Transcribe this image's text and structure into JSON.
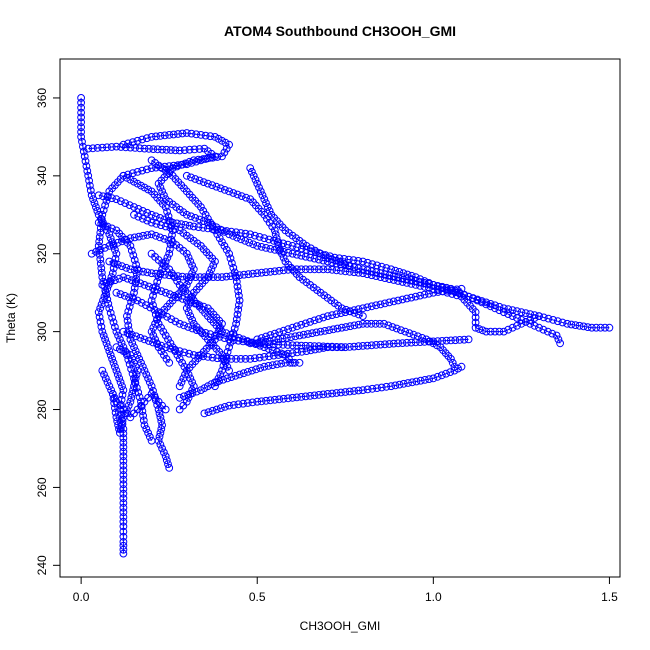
{
  "chart_data": {
    "type": "scatter",
    "title": "ATOM4 Southbound CH3OOH_GMI",
    "xlabel": "CH3OOH_GMI",
    "ylabel": "Theta (K)",
    "xlim": [
      -0.06,
      1.53
    ],
    "ylim": [
      237,
      370
    ],
    "xticks": [
      0.0,
      0.5,
      1.0,
      1.5
    ],
    "xtick_labels": [
      "0.0",
      "0.5",
      "1.0",
      "1.5"
    ],
    "yticks": [
      240,
      260,
      280,
      300,
      320,
      340,
      360
    ],
    "ytick_labels": [
      "240",
      "260",
      "280",
      "300",
      "320",
      "340",
      "360"
    ],
    "grid": false,
    "legend": "none",
    "marker": "open-circle",
    "connect_points": true,
    "series_color": "#0000ff",
    "series": [
      {
        "points": [
          [
            0.0,
            360
          ],
          [
            0.0,
            355
          ],
          [
            0.0,
            350
          ],
          [
            0.01,
            345
          ],
          [
            0.02,
            340
          ],
          [
            0.03,
            335
          ],
          [
            0.05,
            330
          ],
          [
            0.08,
            325
          ],
          [
            0.1,
            320
          ],
          [
            0.09,
            315
          ],
          [
            0.07,
            310
          ],
          [
            0.05,
            305
          ],
          [
            0.06,
            300
          ],
          [
            0.08,
            295
          ],
          [
            0.1,
            290
          ],
          [
            0.12,
            285
          ],
          [
            0.11,
            280
          ],
          [
            0.12,
            275
          ],
          [
            0.12,
            268
          ],
          [
            0.12,
            262
          ],
          [
            0.12,
            256
          ],
          [
            0.12,
            250
          ],
          [
            0.12,
            246
          ],
          [
            0.12,
            243
          ]
        ]
      },
      {
        "points": [
          [
            0.02,
            347
          ],
          [
            0.1,
            347.5
          ],
          [
            0.18,
            347
          ],
          [
            0.28,
            346.5
          ],
          [
            0.35,
            347
          ],
          [
            0.38,
            345
          ],
          [
            0.3,
            343
          ],
          [
            0.2,
            342
          ],
          [
            0.12,
            340
          ],
          [
            0.08,
            336
          ],
          [
            0.06,
            330
          ],
          [
            0.05,
            322
          ],
          [
            0.06,
            314
          ],
          [
            0.08,
            306
          ],
          [
            0.1,
            300
          ],
          [
            0.13,
            294
          ],
          [
            0.15,
            288
          ],
          [
            0.17,
            282
          ],
          [
            0.18,
            276
          ],
          [
            0.2,
            272
          ]
        ]
      },
      {
        "points": [
          [
            0.12,
            348
          ],
          [
            0.2,
            350
          ],
          [
            0.3,
            351
          ],
          [
            0.38,
            350
          ],
          [
            0.42,
            348
          ],
          [
            0.4,
            345
          ],
          [
            0.32,
            344
          ],
          [
            0.26,
            342
          ],
          [
            0.22,
            338
          ],
          [
            0.24,
            334
          ],
          [
            0.3,
            330
          ],
          [
            0.36,
            328
          ],
          [
            0.42,
            325
          ],
          [
            0.5,
            322
          ],
          [
            0.6,
            320
          ],
          [
            0.7,
            318
          ],
          [
            0.8,
            316
          ],
          [
            0.9,
            314
          ],
          [
            1.0,
            312
          ],
          [
            1.1,
            309
          ],
          [
            1.2,
            306
          ],
          [
            1.3,
            304
          ],
          [
            1.38,
            302
          ],
          [
            1.45,
            301
          ],
          [
            1.5,
            301
          ]
        ]
      },
      {
        "points": [
          [
            0.05,
            335
          ],
          [
            0.1,
            334
          ],
          [
            0.15,
            332
          ],
          [
            0.2,
            330
          ],
          [
            0.26,
            328
          ],
          [
            0.32,
            327
          ],
          [
            0.4,
            326
          ],
          [
            0.48,
            325
          ],
          [
            0.56,
            323
          ],
          [
            0.64,
            321
          ],
          [
            0.72,
            319
          ],
          [
            0.8,
            318
          ],
          [
            0.88,
            316
          ],
          [
            0.95,
            314
          ],
          [
            1.0,
            312
          ],
          [
            1.05,
            311
          ],
          [
            1.1,
            309
          ],
          [
            1.15,
            307
          ],
          [
            1.2,
            305
          ],
          [
            1.25,
            303
          ],
          [
            1.3,
            301
          ],
          [
            1.35,
            299
          ],
          [
            1.36,
            297
          ]
        ]
      },
      {
        "points": [
          [
            0.08,
            318
          ],
          [
            0.14,
            316
          ],
          [
            0.2,
            315
          ],
          [
            0.3,
            314
          ],
          [
            0.4,
            314
          ],
          [
            0.5,
            315
          ],
          [
            0.6,
            316
          ],
          [
            0.7,
            316
          ],
          [
            0.8,
            315
          ],
          [
            0.9,
            313
          ],
          [
            1.0,
            311
          ],
          [
            1.08,
            309
          ],
          [
            1.12,
            305
          ],
          [
            1.12,
            301
          ],
          [
            1.15,
            300
          ],
          [
            1.2,
            300
          ],
          [
            1.25,
            302
          ],
          [
            1.3,
            304
          ]
        ]
      },
      {
        "points": [
          [
            0.1,
            310
          ],
          [
            0.16,
            308
          ],
          [
            0.22,
            305
          ],
          [
            0.28,
            302
          ],
          [
            0.34,
            300
          ],
          [
            0.42,
            298
          ],
          [
            0.5,
            297
          ],
          [
            0.56,
            298
          ],
          [
            0.62,
            299
          ],
          [
            0.68,
            300
          ],
          [
            0.74,
            301
          ],
          [
            0.8,
            302
          ],
          [
            0.86,
            302
          ],
          [
            0.92,
            300
          ],
          [
            0.98,
            298
          ],
          [
            1.02,
            296
          ],
          [
            1.05,
            293
          ],
          [
            1.06,
            291
          ]
        ]
      },
      {
        "points": [
          [
            0.12,
            300
          ],
          [
            0.18,
            298
          ],
          [
            0.24,
            296
          ],
          [
            0.32,
            294
          ],
          [
            0.4,
            293
          ],
          [
            0.48,
            293
          ],
          [
            0.56,
            294
          ],
          [
            0.64,
            295
          ],
          [
            0.7,
            296
          ],
          [
            0.74,
            296
          ]
        ]
      },
      {
        "points": [
          [
            0.35,
            279
          ],
          [
            0.42,
            281
          ],
          [
            0.5,
            282
          ],
          [
            0.6,
            283
          ],
          [
            0.7,
            284
          ],
          [
            0.8,
            285
          ],
          [
            0.88,
            286
          ],
          [
            0.94,
            287
          ],
          [
            1.0,
            288
          ],
          [
            1.06,
            290
          ],
          [
            1.08,
            291
          ]
        ]
      },
      {
        "points": [
          [
            0.28,
            283
          ],
          [
            0.34,
            285
          ],
          [
            0.38,
            287
          ],
          [
            0.45,
            289
          ],
          [
            0.52,
            291
          ],
          [
            0.58,
            292
          ],
          [
            0.62,
            292
          ]
        ]
      },
      {
        "points": [
          [
            0.5,
            298
          ],
          [
            0.6,
            301
          ],
          [
            0.7,
            304
          ],
          [
            0.8,
            306
          ],
          [
            0.9,
            308
          ],
          [
            1.0,
            310
          ],
          [
            1.08,
            311
          ]
        ]
      },
      {
        "points": [
          [
            0.48,
            297
          ],
          [
            0.6,
            296.5
          ],
          [
            0.75,
            296
          ],
          [
            0.9,
            297
          ],
          [
            1.0,
            297.5
          ],
          [
            1.1,
            298
          ]
        ]
      },
      {
        "points": [
          [
            0.05,
            328
          ],
          [
            0.1,
            326
          ],
          [
            0.14,
            322
          ],
          [
            0.16,
            316
          ],
          [
            0.15,
            310
          ],
          [
            0.13,
            304
          ],
          [
            0.14,
            298
          ],
          [
            0.17,
            292
          ],
          [
            0.2,
            286
          ],
          [
            0.22,
            280
          ],
          [
            0.23,
            276
          ],
          [
            0.22,
            272
          ],
          [
            0.24,
            268
          ],
          [
            0.25,
            265
          ]
        ]
      },
      {
        "points": [
          [
            0.12,
            340
          ],
          [
            0.16,
            338
          ],
          [
            0.2,
            336
          ],
          [
            0.24,
            332
          ],
          [
            0.26,
            326
          ],
          [
            0.25,
            320
          ],
          [
            0.22,
            314
          ],
          [
            0.2,
            308
          ],
          [
            0.22,
            302
          ],
          [
            0.26,
            296
          ],
          [
            0.3,
            290
          ],
          [
            0.32,
            286
          ],
          [
            0.3,
            282
          ],
          [
            0.28,
            280
          ]
        ]
      },
      {
        "points": [
          [
            0.2,
            344
          ],
          [
            0.26,
            340
          ],
          [
            0.3,
            336
          ],
          [
            0.34,
            332
          ],
          [
            0.38,
            326
          ],
          [
            0.42,
            320
          ],
          [
            0.44,
            314
          ],
          [
            0.45,
            308
          ],
          [
            0.44,
            302
          ],
          [
            0.42,
            296
          ],
          [
            0.4,
            290
          ],
          [
            0.38,
            286
          ]
        ]
      },
      {
        "points": [
          [
            0.3,
            340
          ],
          [
            0.36,
            338
          ],
          [
            0.42,
            336
          ],
          [
            0.48,
            334
          ],
          [
            0.52,
            330
          ],
          [
            0.55,
            326
          ],
          [
            0.56,
            322
          ],
          [
            0.58,
            318
          ],
          [
            0.62,
            314
          ],
          [
            0.68,
            310
          ],
          [
            0.74,
            306
          ],
          [
            0.8,
            304
          ]
        ]
      },
      {
        "points": [
          [
            0.48,
            342
          ],
          [
            0.5,
            338
          ],
          [
            0.52,
            334
          ],
          [
            0.54,
            330
          ],
          [
            0.58,
            326
          ],
          [
            0.64,
            322
          ],
          [
            0.7,
            319
          ],
          [
            0.76,
            317
          ]
        ]
      },
      {
        "points": [
          [
            0.03,
            320
          ],
          [
            0.08,
            322
          ],
          [
            0.14,
            324
          ],
          [
            0.2,
            325
          ],
          [
            0.26,
            323
          ],
          [
            0.3,
            320
          ],
          [
            0.32,
            316
          ],
          [
            0.3,
            312
          ],
          [
            0.26,
            308
          ],
          [
            0.22,
            304
          ],
          [
            0.2,
            300
          ],
          [
            0.22,
            296
          ],
          [
            0.25,
            292
          ]
        ]
      },
      {
        "points": [
          [
            0.06,
            312
          ],
          [
            0.12,
            314
          ],
          [
            0.18,
            312
          ],
          [
            0.24,
            310
          ],
          [
            0.3,
            308
          ],
          [
            0.36,
            306
          ],
          [
            0.4,
            302
          ],
          [
            0.38,
            298
          ],
          [
            0.34,
            294
          ],
          [
            0.3,
            290
          ],
          [
            0.28,
            286
          ]
        ]
      },
      {
        "points": [
          [
            0.1,
            296
          ],
          [
            0.14,
            294
          ],
          [
            0.16,
            290
          ],
          [
            0.15,
            286
          ],
          [
            0.14,
            282
          ],
          [
            0.12,
            278
          ],
          [
            0.11,
            274
          ],
          [
            0.1,
            278
          ],
          [
            0.09,
            284
          ]
        ]
      },
      {
        "points": [
          [
            0.15,
            330
          ],
          [
            0.2,
            328
          ],
          [
            0.28,
            326
          ],
          [
            0.34,
            322
          ],
          [
            0.38,
            318
          ],
          [
            0.36,
            314
          ],
          [
            0.32,
            310
          ],
          [
            0.3,
            306
          ],
          [
            0.32,
            302
          ],
          [
            0.36,
            298
          ],
          [
            0.4,
            294
          ],
          [
            0.42,
            290
          ]
        ]
      },
      {
        "points": [
          [
            0.06,
            290
          ],
          [
            0.08,
            286
          ],
          [
            0.1,
            282
          ],
          [
            0.12,
            280
          ],
          [
            0.14,
            278
          ],
          [
            0.16,
            280
          ],
          [
            0.18,
            282
          ],
          [
            0.2,
            284
          ],
          [
            0.22,
            282
          ],
          [
            0.24,
            280
          ]
        ]
      },
      {
        "points": [
          [
            0.2,
            320
          ],
          [
            0.25,
            316
          ],
          [
            0.28,
            312
          ],
          [
            0.32,
            308
          ],
          [
            0.36,
            304
          ],
          [
            0.4,
            300
          ],
          [
            0.46,
            298
          ],
          [
            0.52,
            296
          ],
          [
            0.58,
            294
          ],
          [
            0.6,
            292
          ]
        ]
      }
    ]
  }
}
